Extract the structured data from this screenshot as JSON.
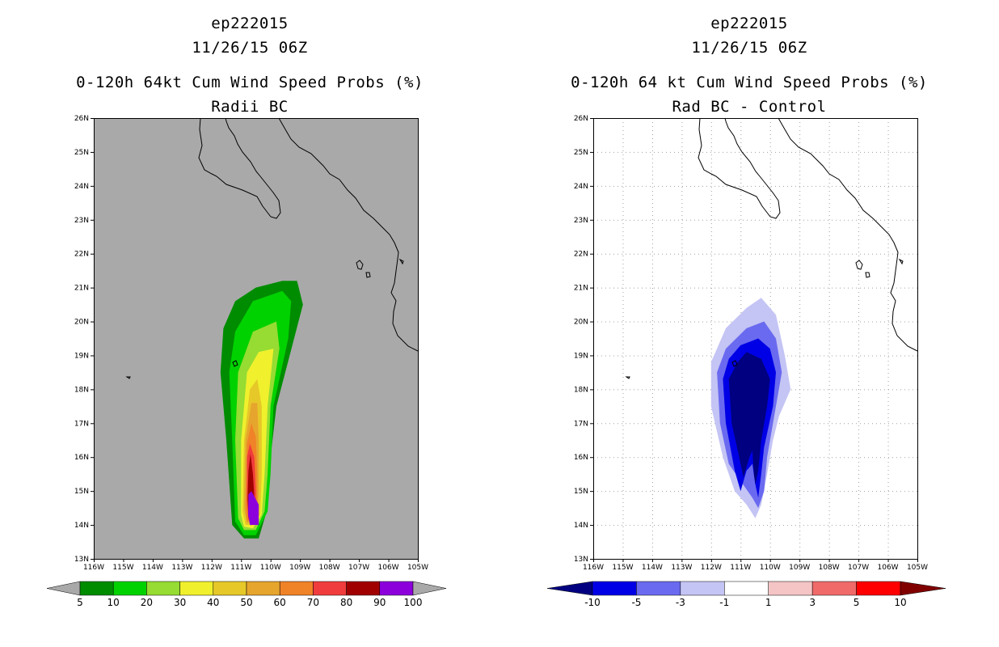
{
  "chart_data": [
    {
      "type": "heatmap",
      "storm_id": "ep222015",
      "datetime": "11/26/15 06Z",
      "title": "0-120h 64kt Cum Wind Speed Probs (%)",
      "subtitle": "Radii BC",
      "x_ticks": [
        "116W",
        "115W",
        "114W",
        "113W",
        "112W",
        "111W",
        "110W",
        "109W",
        "108W",
        "107W",
        "106W",
        "105W"
      ],
      "y_ticks": [
        "13N",
        "14N",
        "15N",
        "16N",
        "17N",
        "18N",
        "19N",
        "20N",
        "21N",
        "22N",
        "23N",
        "24N",
        "25N",
        "26N"
      ],
      "xlim": [
        -116.0,
        -105.0
      ],
      "ylim": [
        13,
        26
      ],
      "background": "#a9a9a9",
      "colorbar": {
        "labels": [
          "5",
          "10",
          "20",
          "30",
          "40",
          "50",
          "60",
          "70",
          "80",
          "90",
          "100"
        ],
        "colors": [
          "#008c00",
          "#00d200",
          "#96dc32",
          "#f0f02d",
          "#e6c828",
          "#e6a52d",
          "#f08228",
          "#f03c3c",
          "#a00000",
          "#8c00dc"
        ],
        "end_color": "#a9a9a9"
      },
      "contours": [
        {
          "level": 5,
          "color": "#008c00",
          "points": [
            [
              -111.3,
              14.0
            ],
            [
              -111.5,
              16.5
            ],
            [
              -111.7,
              18.5
            ],
            [
              -111.6,
              19.8
            ],
            [
              -111.2,
              20.6
            ],
            [
              -110.5,
              21.0
            ],
            [
              -109.6,
              21.2
            ],
            [
              -109.1,
              21.2
            ],
            [
              -108.9,
              20.5
            ],
            [
              -109.2,
              19.5
            ],
            [
              -109.8,
              17.5
            ],
            [
              -110.0,
              16.0
            ],
            [
              -110.1,
              14.5
            ],
            [
              -110.4,
              13.6
            ],
            [
              -110.9,
              13.6
            ]
          ]
        },
        {
          "level": 10,
          "color": "#00d200",
          "points": [
            [
              -111.2,
              14.1
            ],
            [
              -111.3,
              16.5
            ],
            [
              -111.4,
              18.5
            ],
            [
              -111.2,
              19.7
            ],
            [
              -110.6,
              20.6
            ],
            [
              -109.6,
              20.9
            ],
            [
              -109.3,
              20.6
            ],
            [
              -109.4,
              19.5
            ],
            [
              -109.9,
              17.5
            ],
            [
              -110.0,
              15.5
            ],
            [
              -110.1,
              14.4
            ],
            [
              -110.5,
              13.7
            ],
            [
              -110.9,
              13.7
            ]
          ]
        },
        {
          "level": 20,
          "color": "#96dc32",
          "points": [
            [
              -111.1,
              14.2
            ],
            [
              -111.2,
              16.5
            ],
            [
              -111.1,
              18.5
            ],
            [
              -110.6,
              19.7
            ],
            [
              -109.8,
              20.0
            ],
            [
              -109.7,
              19.2
            ],
            [
              -110.0,
              17.5
            ],
            [
              -110.1,
              15.5
            ],
            [
              -110.2,
              14.4
            ],
            [
              -110.5,
              13.85
            ],
            [
              -110.9,
              13.85
            ]
          ]
        },
        {
          "level": 30,
          "color": "#f0f02d",
          "points": [
            [
              -111.0,
              14.3
            ],
            [
              -111.0,
              16.5
            ],
            [
              -110.8,
              18.5
            ],
            [
              -110.4,
              19.1
            ],
            [
              -109.9,
              19.2
            ],
            [
              -110.1,
              17.5
            ],
            [
              -110.2,
              15.5
            ],
            [
              -110.3,
              14.3
            ],
            [
              -110.6,
              13.9
            ],
            [
              -110.9,
              13.95
            ]
          ]
        },
        {
          "level": 40,
          "color": "#e6c828",
          "points": [
            [
              -110.95,
              14.4
            ],
            [
              -110.9,
              16.5
            ],
            [
              -110.7,
              18.0
            ],
            [
              -110.45,
              18.3
            ],
            [
              -110.3,
              17.5
            ],
            [
              -110.3,
              15.5
            ],
            [
              -110.35,
              14.3
            ],
            [
              -110.6,
              14.0
            ],
            [
              -110.85,
              14.0
            ]
          ]
        },
        {
          "level": 50,
          "color": "#e6a52d",
          "points": [
            [
              -110.9,
              14.5
            ],
            [
              -110.85,
              16.5
            ],
            [
              -110.65,
              17.6
            ],
            [
              -110.45,
              17.6
            ],
            [
              -110.4,
              16.5
            ],
            [
              -110.4,
              15.0
            ],
            [
              -110.45,
              14.2
            ],
            [
              -110.8,
              14.05
            ]
          ]
        },
        {
          "level": 60,
          "color": "#f08228",
          "points": [
            [
              -110.85,
              14.6
            ],
            [
              -110.8,
              16.4
            ],
            [
              -110.65,
              17.0
            ],
            [
              -110.5,
              16.6
            ],
            [
              -110.45,
              15.5
            ],
            [
              -110.45,
              14.3
            ],
            [
              -110.8,
              14.1
            ]
          ]
        },
        {
          "level": 70,
          "color": "#f03c3c",
          "points": [
            [
              -110.8,
              14.7
            ],
            [
              -110.8,
              16.0
            ],
            [
              -110.7,
              16.4
            ],
            [
              -110.55,
              16.0
            ],
            [
              -110.5,
              15.0
            ],
            [
              -110.5,
              14.3
            ],
            [
              -110.75,
              14.15
            ]
          ]
        },
        {
          "level": 80,
          "color": "#a00000",
          "points": [
            [
              -110.78,
              14.8
            ],
            [
              -110.75,
              15.6
            ],
            [
              -110.68,
              16.1
            ],
            [
              -110.6,
              15.5
            ],
            [
              -110.55,
              14.8
            ],
            [
              -110.55,
              14.3
            ],
            [
              -110.75,
              14.2
            ]
          ]
        },
        {
          "level": 90,
          "color": "#8c00dc",
          "points": [
            [
              -110.75,
              14.9
            ],
            [
              -110.65,
              15.0
            ],
            [
              -110.4,
              14.6
            ],
            [
              -110.4,
              14.0
            ],
            [
              -110.7,
              14.0
            ],
            [
              -110.76,
              14.3
            ]
          ]
        }
      ]
    },
    {
      "type": "heatmap",
      "storm_id": "ep222015",
      "datetime": "11/26/15 06Z",
      "title": "0-120h 64 kt Cum Wind Speed Probs (%)",
      "subtitle": "Rad BC - Control",
      "x_ticks": [
        "116W",
        "115W",
        "114W",
        "113W",
        "112W",
        "111W",
        "110W",
        "109W",
        "108W",
        "107W",
        "106W",
        "105W"
      ],
      "y_ticks": [
        "13N",
        "14N",
        "15N",
        "16N",
        "17N",
        "18N",
        "19N",
        "20N",
        "21N",
        "22N",
        "23N",
        "24N",
        "25N",
        "26N"
      ],
      "xlim": [
        -116.0,
        -105.0
      ],
      "ylim": [
        13,
        26
      ],
      "background": "#ffffff",
      "grid": true,
      "colorbar": {
        "labels": [
          "-10",
          "-5",
          "-3",
          "-1",
          "1",
          "3",
          "5",
          "10"
        ],
        "colors": [
          "#0000e6",
          "#6a6af0",
          "#c4c4f5",
          "#ffffff",
          "#f5c4c4",
          "#f06a6a",
          "#ff0000"
        ],
        "left_end_color": "#000080",
        "right_end_color": "#800000"
      },
      "contours": [
        {
          "level": -1,
          "color": "#c4c4f5",
          "points": [
            [
              -112.0,
              18.8
            ],
            [
              -112.0,
              17.5
            ],
            [
              -111.6,
              16.0
            ],
            [
              -111.2,
              15.0
            ],
            [
              -110.8,
              14.6
            ],
            [
              -110.5,
              14.2
            ],
            [
              -110.3,
              14.6
            ],
            [
              -110.1,
              15.5
            ],
            [
              -109.9,
              16.5
            ],
            [
              -109.7,
              17.2
            ],
            [
              -109.3,
              18.0
            ],
            [
              -109.5,
              19.0
            ],
            [
              -109.8,
              20.2
            ],
            [
              -110.3,
              20.7
            ],
            [
              -110.8,
              20.4
            ],
            [
              -111.5,
              19.8
            ]
          ]
        },
        {
          "level": -3,
          "color": "#6a6af0",
          "points": [
            [
              -111.8,
              18.5
            ],
            [
              -111.7,
              17.0
            ],
            [
              -111.4,
              15.8
            ],
            [
              -111.0,
              15.3
            ],
            [
              -110.6,
              14.8
            ],
            [
              -110.4,
              14.5
            ],
            [
              -110.2,
              15.0
            ],
            [
              -110.1,
              16.0
            ],
            [
              -109.8,
              17.5
            ],
            [
              -109.6,
              18.5
            ],
            [
              -109.8,
              19.5
            ],
            [
              -110.2,
              20.0
            ],
            [
              -110.8,
              19.8
            ],
            [
              -111.5,
              19.2
            ]
          ]
        },
        {
          "level": -5,
          "color": "#0000e6",
          "points": [
            [
              -111.6,
              18.3
            ],
            [
              -111.5,
              17.0
            ],
            [
              -111.2,
              15.6
            ],
            [
              -111.0,
              15.0
            ],
            [
              -110.8,
              15.6
            ],
            [
              -110.6,
              15.8
            ],
            [
              -110.5,
              15.2
            ],
            [
              -110.4,
              14.8
            ],
            [
              -110.3,
              15.5
            ],
            [
              -110.2,
              16.3
            ],
            [
              -109.9,
              17.5
            ],
            [
              -109.8,
              18.5
            ],
            [
              -110.0,
              19.2
            ],
            [
              -110.4,
              19.5
            ],
            [
              -111.0,
              19.3
            ],
            [
              -111.4,
              18.9
            ]
          ]
        },
        {
          "level": -10,
          "color": "#000080",
          "points": [
            [
              -111.4,
              18.3
            ],
            [
              -111.3,
              17.0
            ],
            [
              -111.0,
              15.8
            ],
            [
              -110.9,
              15.4
            ],
            [
              -110.7,
              16.0
            ],
            [
              -110.6,
              16.2
            ],
            [
              -110.55,
              15.5
            ],
            [
              -110.5,
              15.2
            ],
            [
              -110.4,
              15.6
            ],
            [
              -110.3,
              16.5
            ],
            [
              -110.1,
              17.5
            ],
            [
              -110.0,
              18.3
            ],
            [
              -110.3,
              18.9
            ],
            [
              -110.8,
              19.1
            ],
            [
              -111.1,
              18.8
            ]
          ]
        }
      ]
    }
  ]
}
